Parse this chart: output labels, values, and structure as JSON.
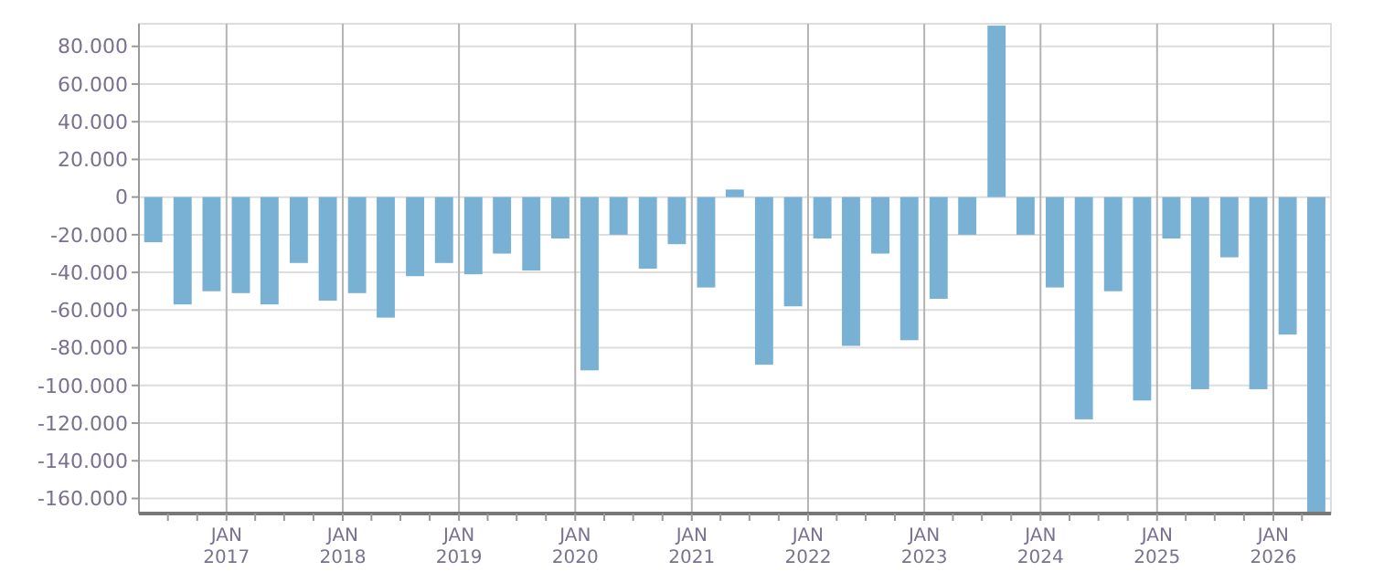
{
  "chart_data": {
    "type": "bar",
    "color": "#78b1d3",
    "grid": true,
    "x": [
      "2016-05-16",
      "2016-08-16",
      "2016-11-15",
      "2017-02-15",
      "2017-05-16",
      "2017-08-16",
      "2017-11-15",
      "2018-02-15",
      "2018-05-16",
      "2018-08-16",
      "2018-11-15",
      "2019-02-15",
      "2019-05-16",
      "2019-08-16",
      "2019-11-15",
      "2020-02-15",
      "2020-05-16",
      "2020-08-16",
      "2020-11-15",
      "2021-02-15",
      "2021-05-16",
      "2021-08-16",
      "2021-11-15",
      "2022-02-15",
      "2022-05-16",
      "2022-08-16",
      "2022-11-15",
      "2023-02-15",
      "2023-05-16",
      "2023-08-16",
      "2023-11-15",
      "2024-02-15",
      "2024-05-16",
      "2024-08-16",
      "2024-11-15",
      "2025-02-15",
      "2025-05-16",
      "2025-08-16",
      "2025-11-15",
      "2026-02-15",
      "2026-05-16"
    ],
    "values": [
      -24000,
      -57000,
      -50000,
      -51000,
      -57000,
      -35000,
      -55000,
      -51000,
      -64000,
      -42000,
      -35000,
      -41000,
      -30000,
      -39000,
      -22000,
      -92000,
      -20000,
      -38000,
      -25000,
      -48000,
      4000,
      -89000,
      -58000,
      -22000,
      -79000,
      -30000,
      -76000,
      -54000,
      -20000,
      91000,
      -20000,
      -48000,
      -118000,
      -50000,
      -108000,
      -22000,
      -102000,
      -32000,
      -102000,
      -73000,
      -168000
    ],
    "xlim": [
      "2016-04",
      "2026-07"
    ],
    "xticks": [
      {
        "value": "2016-07",
        "label": null
      },
      {
        "value": "2016-10",
        "label": null
      },
      {
        "value": "2017-01",
        "label": "JAN\n2017"
      },
      {
        "value": "2017-04",
        "label": null
      },
      {
        "value": "2017-07",
        "label": null
      },
      {
        "value": "2017-10",
        "label": null
      },
      {
        "value": "2018-01",
        "label": "JAN\n2018"
      },
      {
        "value": "2018-04",
        "label": null
      },
      {
        "value": "2018-07",
        "label": null
      },
      {
        "value": "2018-10",
        "label": null
      },
      {
        "value": "2019-01",
        "label": "JAN\n2019"
      },
      {
        "value": "2019-04",
        "label": null
      },
      {
        "value": "2019-07",
        "label": null
      },
      {
        "value": "2019-10",
        "label": null
      },
      {
        "value": "2020-01",
        "label": "JAN\n2020"
      },
      {
        "value": "2020-04",
        "label": null
      },
      {
        "value": "2020-07",
        "label": null
      },
      {
        "value": "2020-10",
        "label": null
      },
      {
        "value": "2021-01",
        "label": "JAN\n2021"
      },
      {
        "value": "2021-04",
        "label": null
      },
      {
        "value": "2021-07",
        "label": null
      },
      {
        "value": "2021-10",
        "label": null
      },
      {
        "value": "2022-01",
        "label": "JAN\n2022"
      },
      {
        "value": "2022-04",
        "label": null
      },
      {
        "value": "2022-07",
        "label": null
      },
      {
        "value": "2022-10",
        "label": null
      },
      {
        "value": "2023-01",
        "label": "JAN\n2023"
      },
      {
        "value": "2023-04",
        "label": null
      },
      {
        "value": "2023-07",
        "label": null
      },
      {
        "value": "2023-10",
        "label": null
      },
      {
        "value": "2024-01",
        "label": "JAN\n2024"
      },
      {
        "value": "2024-04",
        "label": null
      },
      {
        "value": "2024-07",
        "label": null
      },
      {
        "value": "2024-10",
        "label": null
      },
      {
        "value": "2025-01",
        "label": "JAN\n2025"
      },
      {
        "value": "2025-04",
        "label": null
      },
      {
        "value": "2025-07",
        "label": null
      },
      {
        "value": "2025-10",
        "label": null
      },
      {
        "value": "2026-01",
        "label": "JAN\n2026"
      },
      {
        "value": "2026-04",
        "label": null
      }
    ],
    "ylim": [
      -168000,
      92000
    ],
    "yticks": [
      {
        "value": -160000,
        "label": "-160.000"
      },
      {
        "value": -140000,
        "label": "-140.000"
      },
      {
        "value": -120000,
        "label": "-120.000"
      },
      {
        "value": -100000,
        "label": "-100.000"
      },
      {
        "value": -80000,
        "label": "-80.000"
      },
      {
        "value": -60000,
        "label": "-60.000"
      },
      {
        "value": -40000,
        "label": "-40.000"
      },
      {
        "value": -20000,
        "label": "-20.000"
      },
      {
        "value": 0,
        "label": "0"
      },
      {
        "value": 20000,
        "label": "20.000"
      },
      {
        "value": 40000,
        "label": "40.000"
      },
      {
        "value": 60000,
        "label": "60.000"
      },
      {
        "value": 80000,
        "label": "80.000"
      }
    ]
  }
}
